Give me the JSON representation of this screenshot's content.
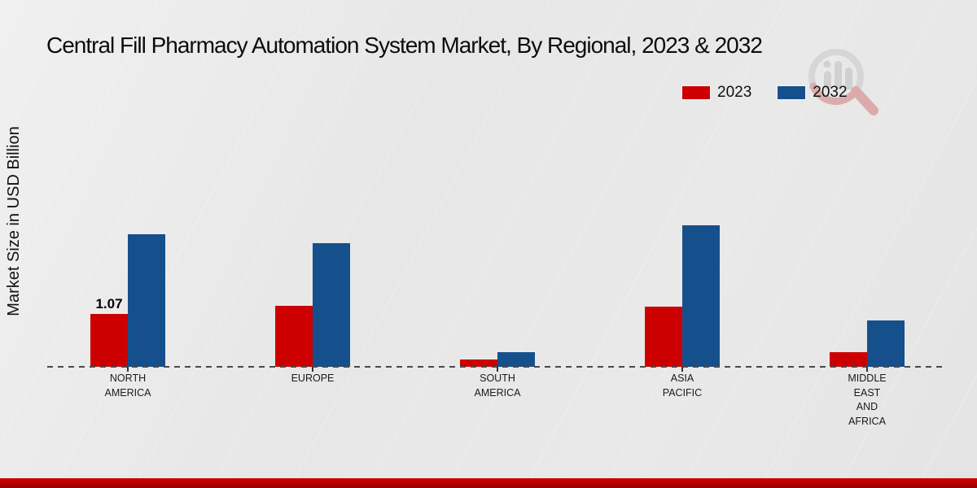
{
  "title": "Central Fill Pharmacy Automation System Market, By Regional, 2023 & 2032",
  "y_axis_label": "Market Size in USD Billion",
  "legend": [
    {
      "label": "2023",
      "color": "#cc0001"
    },
    {
      "label": "2032",
      "color": "#15508c"
    }
  ],
  "colors": {
    "series_2023": "#cc0001",
    "series_2032": "#15508c",
    "axis_line": "#4a4a4a",
    "footer_strip": "#b50000",
    "background": "#e8e8e8"
  },
  "watermark_icon": "market-research-logo",
  "chart_data": {
    "type": "bar",
    "title": "Central Fill Pharmacy Automation System Market, By Regional, 2023 & 2032",
    "xlabel": "",
    "ylabel": "Market Size in USD Billion",
    "ylim": [
      0,
      3.2
    ],
    "grid": false,
    "legend_position": "top-right",
    "baseline_style": "dashed",
    "categories": [
      "NORTH AMERICA",
      "EUROPE",
      "SOUTH AMERICA",
      "ASIA PACIFIC",
      "MIDDLE EAST AND AFRICA"
    ],
    "category_label_lines": [
      [
        "NORTH",
        "AMERICA"
      ],
      [
        "EUROPE"
      ],
      [
        "SOUTH",
        "AMERICA"
      ],
      [
        "ASIA",
        "PACIFIC"
      ],
      [
        "MIDDLE",
        "EAST",
        "AND",
        "AFRICA"
      ]
    ],
    "series": [
      {
        "name": "2023",
        "color": "#cc0001",
        "values": [
          1.07,
          1.23,
          0.15,
          1.22,
          0.3
        ]
      },
      {
        "name": "2032",
        "color": "#15508c",
        "values": [
          2.68,
          2.5,
          0.3,
          2.86,
          0.94
        ]
      }
    ],
    "data_labels": [
      {
        "series": "2023",
        "category": "NORTH AMERICA",
        "text": "1.07"
      }
    ]
  }
}
